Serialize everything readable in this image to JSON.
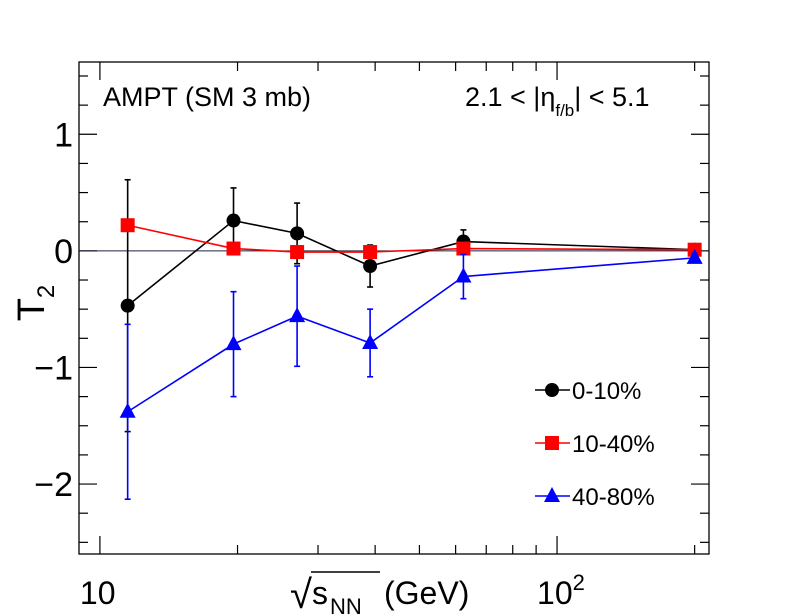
{
  "chart_data": {
    "type": "scatter",
    "title": "",
    "xlabel_root": "√",
    "xlabel_s": "s",
    "xlabel_sub": "NN",
    "xlabel_unit": "(GeV)",
    "ylabel": "T",
    "ylabel_sub": "2",
    "xscale": "log",
    "xlim": [
      9.0,
      215.0
    ],
    "ylim": [
      -2.6,
      1.62
    ],
    "xticks": [
      {
        "value": 10,
        "label": "10",
        "sup": ""
      },
      {
        "value": 100,
        "label": "10",
        "sup": "2"
      }
    ],
    "yticks": [
      {
        "value": 1,
        "label": "1"
      },
      {
        "value": 0,
        "label": "0"
      },
      {
        "value": -1,
        "label": "−1"
      },
      {
        "value": -2,
        "label": "−2"
      }
    ],
    "zero_line": 0,
    "annotation_left": "AMPT (SM 3 mb)",
    "annotation_right": {
      "prefix": "2.1 < |η",
      "sub": "f/b",
      "suffix": "| < 5.1"
    },
    "legend_position": "bottom-right",
    "series": [
      {
        "name": "0-10%",
        "marker": "circle",
        "color": "#000000",
        "x": [
          11.5,
          19.6,
          27,
          39,
          62.4,
          200
        ],
        "y": [
          -0.47,
          0.26,
          0.15,
          -0.13,
          0.08,
          0.01
        ],
        "err": [
          1.08,
          0.28,
          0.26,
          0.18,
          0.1,
          0.02
        ]
      },
      {
        "name": "10-40%",
        "marker": "square",
        "color": "#ff0000",
        "x": [
          11.5,
          19.6,
          27,
          39,
          62.4,
          200
        ],
        "y": [
          0.22,
          0.02,
          -0.01,
          -0.01,
          0.02,
          0.01
        ],
        "err": [
          0.05,
          0.03,
          0.03,
          0.02,
          0.02,
          0.01
        ]
      },
      {
        "name": "40-80%",
        "marker": "triangle",
        "color": "#0000ff",
        "x": [
          11.5,
          19.6,
          27,
          39,
          62.4,
          200
        ],
        "y": [
          -1.38,
          -0.8,
          -0.56,
          -0.79,
          -0.22,
          -0.06
        ],
        "err": [
          0.75,
          0.45,
          0.43,
          0.29,
          0.19,
          0.04
        ]
      }
    ]
  }
}
